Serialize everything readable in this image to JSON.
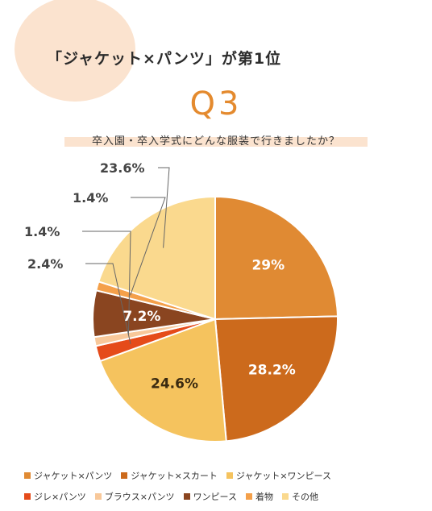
{
  "header": {
    "headline": "「ジャケット×パンツ」が第1位",
    "question_no": "Q3",
    "subtitle": "卒入園・卒入学式にどんな服装で行きましたか？"
  },
  "chart_data": {
    "type": "pie",
    "title": "卒入園・卒入学式にどんな服装で行きましたか？",
    "start_angle_deg": 0,
    "direction": "clockwise",
    "slices": [
      {
        "label": "ジャケット×パンツ",
        "value": 29,
        "display": "29%",
        "color": "#e08a33"
      },
      {
        "label": "ジャケット×スカート",
        "value": 28.2,
        "display": "28.2%",
        "color": "#cc6a1c"
      },
      {
        "label": "ジャケット×ワンピース",
        "value": 24.6,
        "display": "24.6%",
        "color": "#f5c35e"
      },
      {
        "label": "ジレ×パンツ",
        "value": 2.4,
        "display": "2.4%",
        "color": "#e54b1a"
      },
      {
        "label": "ブラウス×パンツ",
        "value": 1.4,
        "display": "1.4%",
        "color": "#f8c89a"
      },
      {
        "label": "ワンピース",
        "value": 7.2,
        "display": "7.2%",
        "color": "#8a4520"
      },
      {
        "label": "着物",
        "value": 1.4,
        "display": "1.4%",
        "color": "#f4a04a"
      },
      {
        "label": "その他",
        "value": 23.6,
        "display": "23.6%",
        "color": "#fad98e"
      }
    ],
    "legend": {
      "placement": "bottom",
      "rows": [
        [
          0,
          1,
          2
        ],
        [
          3,
          4,
          5,
          6,
          7
        ]
      ]
    }
  }
}
